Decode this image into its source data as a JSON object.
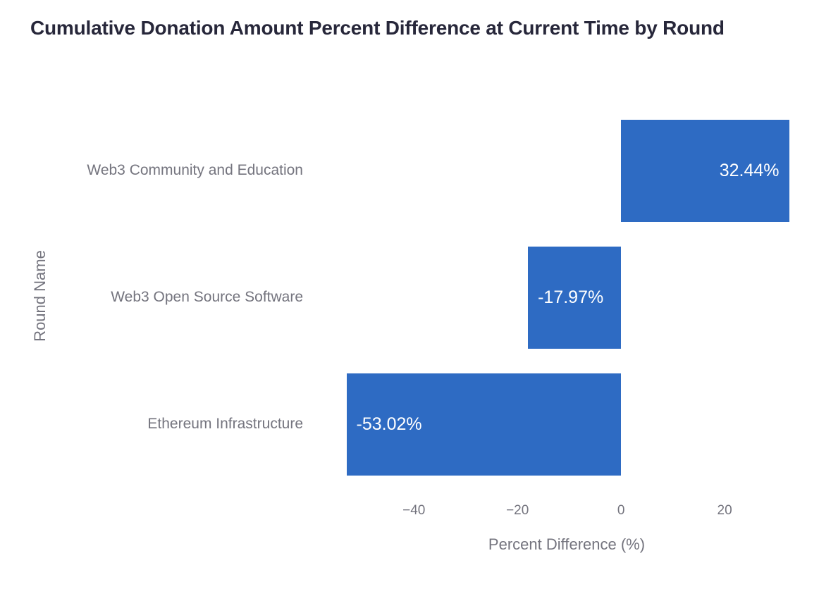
{
  "chart_data": {
    "type": "bar",
    "orientation": "horizontal",
    "title": "Cumulative Donation Amount Percent Difference at Current Time by Round",
    "xlabel": "Percent Difference (%)",
    "ylabel": "Round Name",
    "categories": [
      "Web3 Community and Education",
      "Web3 Open Source Software",
      "Ethereum Infrastructure"
    ],
    "values": [
      32.44,
      -17.97,
      -53.02
    ],
    "value_labels": [
      "32.44%",
      "-17.97%",
      "-53.02%"
    ],
    "xlim": [
      -55,
      34
    ],
    "xticks": [
      -40,
      -20,
      0,
      20
    ],
    "xtick_labels": [
      "−40",
      "−20",
      "0",
      "20"
    ],
    "grid": false,
    "legend": "none",
    "bar_color": "#2e6bc3",
    "value_label_color": "#ffffff"
  },
  "colors": {
    "background": "#ffffff",
    "title_text": "#27273a",
    "axis_text": "#74747e"
  }
}
